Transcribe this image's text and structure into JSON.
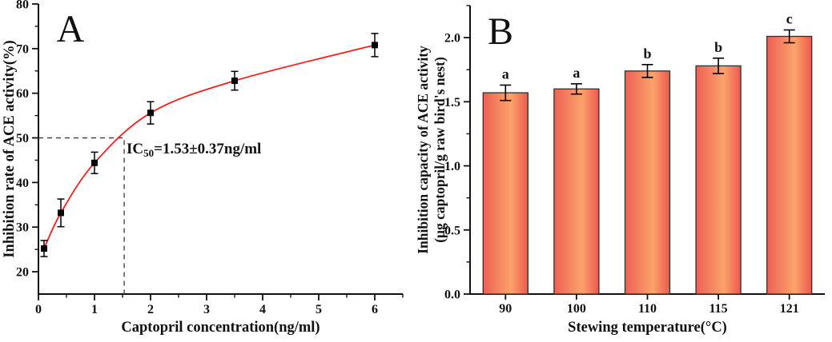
{
  "figure": {
    "background": "#ffffff",
    "axis_color": "#111111",
    "dash_color": "#3a3a3a"
  },
  "chart_data": [
    {
      "type": "scatter",
      "panel_label": "A",
      "xlabel": "Captopril concentration(ng/ml)",
      "ylabel": "Inhibition rate of ACE activity(%)",
      "xlim": [
        0,
        6.5
      ],
      "ylim": [
        15,
        80
      ],
      "x_major_ticks": [
        0,
        1,
        2,
        3,
        4,
        5,
        6
      ],
      "x_tick_labels": [
        "0",
        "1",
        "2",
        "3",
        "4",
        "5",
        "6"
      ],
      "x_minor_step": 0.5,
      "y_major_ticks": [
        20,
        30,
        40,
        50,
        60,
        70,
        80
      ],
      "y_tick_labels": [
        "20",
        "30",
        "40",
        "50",
        "60",
        "70",
        "80"
      ],
      "y_minor_step": 5,
      "points": [
        {
          "x": 0.1,
          "y": 25.2,
          "err": 1.8
        },
        {
          "x": 0.4,
          "y": 33.2,
          "err": 3.1
        },
        {
          "x": 1.0,
          "y": 44.4,
          "err": 2.4
        },
        {
          "x": 2.0,
          "y": 55.6,
          "err": 2.5
        },
        {
          "x": 3.5,
          "y": 62.8,
          "err": 2.1
        },
        {
          "x": 6.0,
          "y": 70.8,
          "err": 2.6
        }
      ],
      "point_color": "#000000",
      "curve_color": "#fb1d1d",
      "ic50_ref": {
        "x": 1.53,
        "y": 50
      },
      "annotation": {
        "prefix": "IC",
        "sub": "50",
        "suffix": "=1.53±0.37ng/ml"
      }
    },
    {
      "type": "bar",
      "panel_label": "B",
      "xlabel": "Stewing temperature(°C)",
      "ylabel_line1": "Inhibition capacity of ACE activity",
      "ylabel_line2": "(μg captopril/g raw bird's nest)",
      "categories": [
        "90",
        "100",
        "110",
        "115",
        "121"
      ],
      "values": [
        1.57,
        1.6,
        1.74,
        1.78,
        2.01
      ],
      "errors": [
        0.06,
        0.04,
        0.05,
        0.06,
        0.05
      ],
      "sig_letters": [
        "a",
        "a",
        "b",
        "b",
        "c"
      ],
      "ylim": [
        0,
        2.25
      ],
      "y_major_ticks": [
        0,
        0.5,
        1,
        1.5,
        2
      ],
      "y_tick_labels": [
        "0.0",
        "0.5",
        "1.0",
        "1.5",
        "2.0"
      ],
      "y_minor_step": 0.25,
      "bar_gradient": [
        "#ed6054",
        "#fba36b",
        "#ec594d"
      ],
      "bar_border": "#2f2f2f"
    }
  ]
}
